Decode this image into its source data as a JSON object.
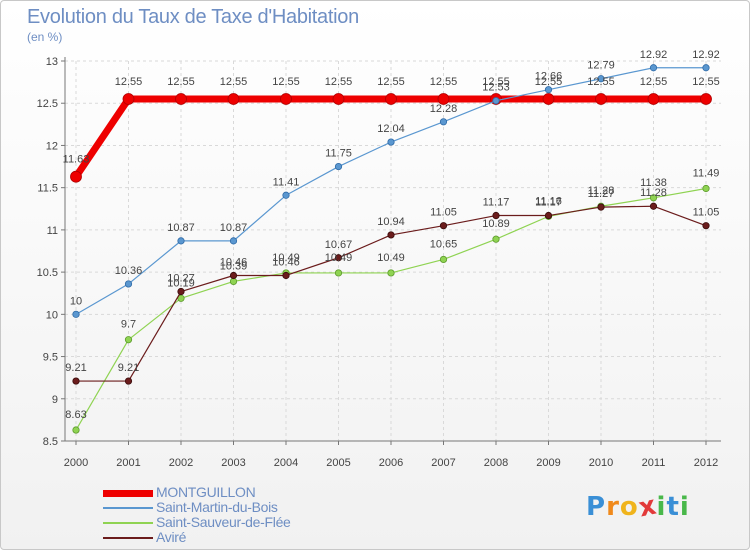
{
  "title": "Evolution du Taux de Taxe d'Habitation",
  "unit": "(en %)",
  "logo": {
    "letters": [
      "P",
      "r",
      "o",
      "x",
      "i",
      "t",
      "i"
    ],
    "colors": [
      "#3a8fd6",
      "#f08a1c",
      "#f0b41c",
      "#e23a3a",
      "#49b84a",
      "#3a8fd6",
      "#49b84a"
    ]
  },
  "chart_data": {
    "type": "line",
    "x": [
      "2000",
      "2001",
      "2002",
      "2003",
      "2004",
      "2005",
      "2006",
      "2007",
      "2008",
      "2009",
      "2010",
      "2011",
      "2012"
    ],
    "ylim": [
      8.5,
      13
    ],
    "yticks": [
      "8.5",
      "9",
      "9.5",
      "10",
      "10.5",
      "11",
      "11.5",
      "12",
      "12.5",
      "13"
    ],
    "grid": "dashed horizontal and vertical",
    "legend_position": "bottom-left",
    "series": [
      {
        "name": "MONTGUILLON",
        "color": "#ee0000",
        "values": [
          11.63,
          12.55,
          12.55,
          12.55,
          12.55,
          12.55,
          12.55,
          12.55,
          12.55,
          12.55,
          12.55,
          12.55,
          12.55
        ],
        "labels": [
          "11.63",
          "12.55",
          "12.55",
          "12.55",
          "12.55",
          "12.55",
          "12.55",
          "12.55",
          "12.55",
          "12.55",
          "12.55",
          "12.55",
          "12.55"
        ]
      },
      {
        "name": "Saint-Martin-du-Bois",
        "color": "#5a97d0",
        "values": [
          10,
          10.36,
          10.87,
          10.87,
          11.41,
          11.75,
          12.04,
          12.28,
          12.53,
          12.66,
          12.79,
          12.92,
          12.92
        ],
        "labels": [
          "10",
          "10.36",
          "10.87",
          "10.87",
          "11.41",
          "11.75",
          "12.04",
          "12.28",
          "12.53",
          "12.66",
          "12.79",
          "12.92",
          "12.92"
        ]
      },
      {
        "name": "Saint-Sauveur-de-Flée",
        "color": "#8fd352",
        "values": [
          8.63,
          9.7,
          10.19,
          10.39,
          10.49,
          10.49,
          10.49,
          10.65,
          10.89,
          11.16,
          11.28,
          11.38,
          11.49
        ],
        "labels": [
          "8.63",
          "9.7",
          "10.19",
          "10.39",
          "10.49",
          "10.49",
          "10.49",
          "10.65",
          "10.89",
          "11.16",
          "11.28",
          "11.38",
          "11.49"
        ]
      },
      {
        "name": "Aviré",
        "color": "#6b1c1c",
        "values": [
          9.21,
          9.21,
          10.27,
          10.46,
          10.46,
          10.67,
          10.94,
          11.05,
          11.17,
          11.17,
          11.27,
          11.28,
          11.05
        ],
        "labels": [
          "9.21",
          "9.21",
          "10.27",
          "10.46",
          "10.46",
          "10.67",
          "10.94",
          "11.05",
          "11.17",
          "11.17",
          "11.27",
          "11.28",
          "11.05"
        ]
      }
    ]
  }
}
